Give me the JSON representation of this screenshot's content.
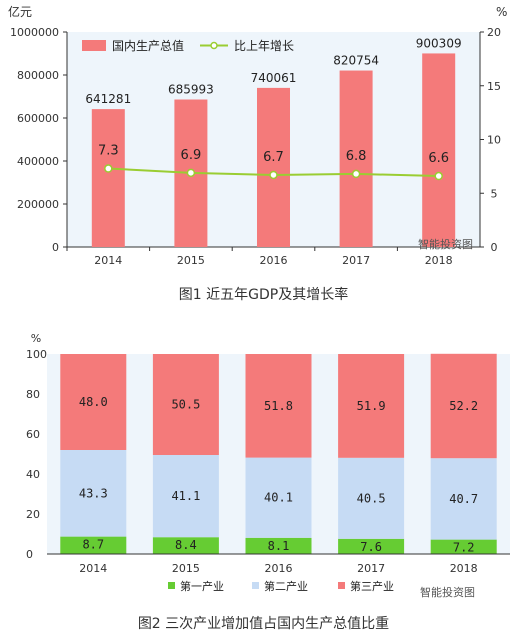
{
  "colors": {
    "bar_red": "#f47a7a",
    "line_green": "#9acd32",
    "primary_green": "#66cc33",
    "secondary_blue": "#c6dbf4",
    "tertiary_red": "#f47a7a",
    "plot_bg": "#eef5fb"
  },
  "watermark": "智能投资图",
  "chart_data": [
    {
      "type": "bar",
      "caption": "图1  近五年GDP及其增长率",
      "categories": [
        "2014",
        "2015",
        "2016",
        "2017",
        "2018"
      ],
      "y_left_unit": "亿元",
      "y_right_unit": "%",
      "ylim_left": [
        0,
        1000000
      ],
      "ylim_right": [
        0,
        20
      ],
      "y_left_ticks": [
        "0",
        "200000",
        "400000",
        "600000",
        "800000",
        "1000000"
      ],
      "y_right_ticks": [
        "0",
        "5",
        "10",
        "15",
        "20"
      ],
      "legend": {
        "bar": "国内生产总值",
        "line": "比上年增长"
      },
      "legend_position": "top-left",
      "series": [
        {
          "name": "国内生产总值",
          "kind": "bar",
          "axis": "left",
          "values": [
            641281,
            685993,
            740061,
            820754,
            900309
          ],
          "labels": [
            "641281",
            "685993",
            "740061",
            "820754",
            "900309"
          ]
        },
        {
          "name": "比上年增长",
          "kind": "line",
          "axis": "right",
          "values": [
            7.3,
            6.9,
            6.7,
            6.8,
            6.6
          ],
          "labels": [
            "7.3",
            "6.9",
            "6.7",
            "6.8",
            "6.6"
          ]
        }
      ]
    },
    {
      "type": "bar",
      "stacked": true,
      "caption": "图2  三次产业增加值占国内生产总值比重",
      "categories": [
        "2014",
        "2015",
        "2016",
        "2017",
        "2018"
      ],
      "y_unit": "%",
      "ylim": [
        0,
        100
      ],
      "y_ticks": [
        "0",
        "20",
        "40",
        "60",
        "80",
        "100"
      ],
      "legend_position": "bottom",
      "series": [
        {
          "name": "第一产业",
          "values": [
            8.7,
            8.4,
            8.1,
            7.6,
            7.2
          ],
          "labels": [
            "8.7",
            "8.4",
            "8.1",
            "7.6",
            "7.2"
          ]
        },
        {
          "name": "第二产业",
          "values": [
            43.3,
            41.1,
            40.1,
            40.5,
            40.7
          ],
          "labels": [
            "43.3",
            "41.1",
            "40.1",
            "40.5",
            "40.7"
          ]
        },
        {
          "name": "第三产业",
          "values": [
            48.0,
            50.5,
            51.8,
            51.9,
            52.2
          ],
          "labels": [
            "48.0",
            "50.5",
            "51.8",
            "51.9",
            "52.2"
          ]
        }
      ]
    }
  ]
}
